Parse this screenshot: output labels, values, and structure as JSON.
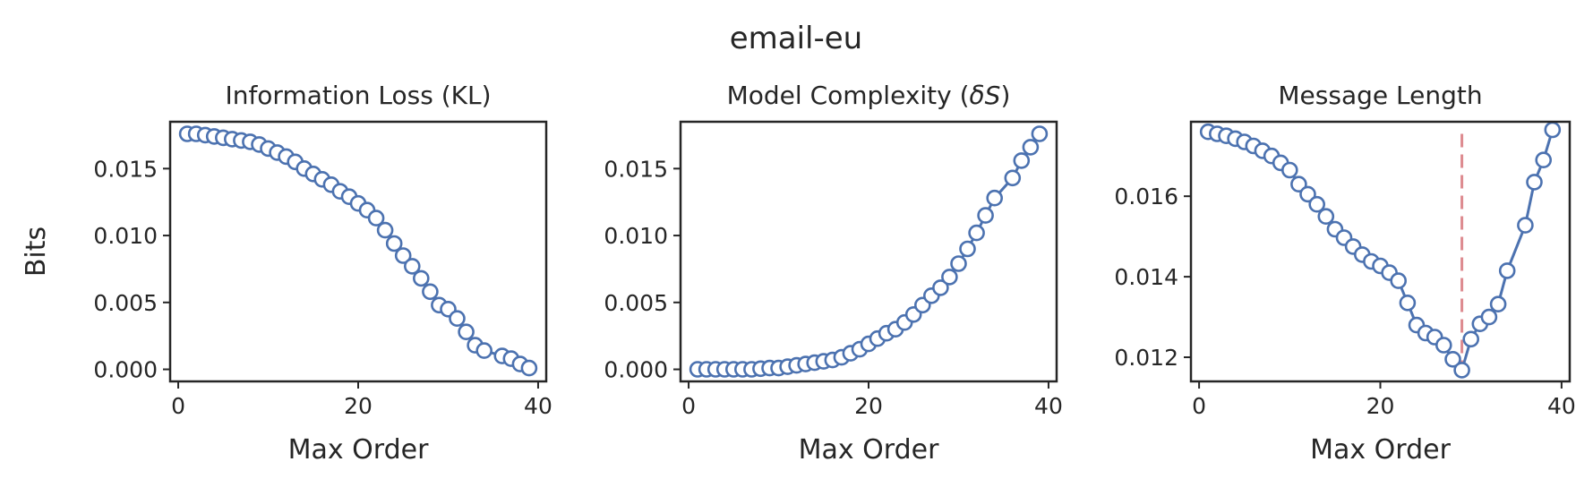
{
  "figure": {
    "title": "email-eu"
  },
  "chart_data": [
    {
      "type": "line",
      "title": "Information Loss (KL)",
      "xlabel": "Max Order",
      "ylabel": "Bits",
      "xlim": [
        -0.9,
        40.9
      ],
      "ylim": [
        -0.0009,
        0.0185
      ],
      "xticks": [
        0,
        20,
        40
      ],
      "xtick_labels": [
        "0",
        "20",
        "40"
      ],
      "yticks": [
        0.0,
        0.005,
        0.01,
        0.015
      ],
      "ytick_labels": [
        "0.000",
        "0.005",
        "0.010",
        "0.015"
      ],
      "grid": false,
      "marker": "open-circle",
      "color": "#4c72b0",
      "x": [
        1,
        2,
        3,
        4,
        5,
        6,
        7,
        8,
        9,
        10,
        11,
        12,
        13,
        14,
        15,
        16,
        17,
        18,
        19,
        20,
        21,
        22,
        23,
        24,
        25,
        26,
        27,
        28,
        29,
        30,
        31,
        32,
        33,
        34,
        35,
        36,
        37,
        38,
        39
      ],
      "values": [
        0.0176,
        0.0176,
        0.0175,
        0.0174,
        0.0173,
        0.0172,
        0.0171,
        0.017,
        0.0168,
        0.0165,
        0.0162,
        0.0159,
        0.0155,
        0.015,
        0.0146,
        0.0142,
        0.0138,
        0.0133,
        0.0129,
        0.0124,
        0.0119,
        0.0113,
        0.0104,
        0.0094,
        0.0085,
        0.0077,
        0.0068,
        0.0058,
        0.0048,
        0.0045,
        0.0038,
        0.0028,
        0.0018,
        0.0014,
        null,
        0.001,
        0.0008,
        0.0004,
        0.0001
      ]
    },
    {
      "type": "line",
      "title": "Model Complexity (δS)",
      "title_plain": "Model Complexity (",
      "title_symbol": "δS",
      "title_end": ")",
      "xlabel": "Max Order",
      "xlim": [
        -0.9,
        40.9
      ],
      "ylim": [
        -0.0009,
        0.0185
      ],
      "xticks": [
        0,
        20,
        40
      ],
      "xtick_labels": [
        "0",
        "20",
        "40"
      ],
      "yticks": [
        0.0,
        0.005,
        0.01,
        0.015
      ],
      "ytick_labels": [
        "0.000",
        "0.005",
        "0.010",
        "0.015"
      ],
      "grid": false,
      "marker": "open-circle",
      "color": "#4c72b0",
      "x": [
        1,
        2,
        3,
        4,
        5,
        6,
        7,
        8,
        9,
        10,
        11,
        12,
        13,
        14,
        15,
        16,
        17,
        18,
        19,
        20,
        21,
        22,
        23,
        24,
        25,
        26,
        27,
        28,
        29,
        30,
        31,
        32,
        33,
        34,
        35,
        36,
        37,
        38,
        39
      ],
      "values": [
        0.0,
        0.0,
        0.0,
        0.0,
        0.0,
        0.0,
        0.0,
        5e-05,
        0.0001,
        0.0001,
        0.0002,
        0.0003,
        0.0004,
        0.0005,
        0.0006,
        0.0007,
        0.0009,
        0.0012,
        0.0015,
        0.0019,
        0.0023,
        0.0027,
        0.003,
        0.0035,
        0.0041,
        0.0048,
        0.0055,
        0.0061,
        0.0069,
        0.0079,
        0.009,
        0.0102,
        0.0115,
        0.0128,
        null,
        0.0143,
        0.0156,
        0.0166,
        0.0176
      ]
    },
    {
      "type": "line",
      "title": "Message Length",
      "xlabel": "Max Order",
      "xlim": [
        -0.9,
        40.9
      ],
      "ylim": [
        0.0114,
        0.01785
      ],
      "xticks": [
        0,
        20,
        40
      ],
      "xtick_labels": [
        "0",
        "20",
        "40"
      ],
      "yticks": [
        0.012,
        0.014,
        0.016
      ],
      "ytick_labels": [
        "0.012",
        "0.014",
        "0.016"
      ],
      "grid": false,
      "marker": "open-circle",
      "color": "#4c72b0",
      "x": [
        1,
        2,
        3,
        4,
        5,
        6,
        7,
        8,
        9,
        10,
        11,
        12,
        13,
        14,
        15,
        16,
        17,
        18,
        19,
        20,
        21,
        22,
        23,
        24,
        25,
        26,
        27,
        28,
        29,
        30,
        31,
        32,
        33,
        34,
        35,
        36,
        37,
        38,
        39
      ],
      "values": [
        0.0176,
        0.01755,
        0.0175,
        0.01743,
        0.01735,
        0.01725,
        0.01713,
        0.017,
        0.01683,
        0.01665,
        0.0163,
        0.01605,
        0.0158,
        0.0155,
        0.01518,
        0.01497,
        0.01475,
        0.01455,
        0.01438,
        0.01427,
        0.0141,
        0.0139,
        0.01335,
        0.0128,
        0.0126,
        0.0125,
        0.0123,
        0.01195,
        0.01168,
        0.01245,
        0.01283,
        0.013,
        0.01332,
        0.01415,
        null,
        0.01528,
        0.01635,
        0.0169,
        0.01765
      ],
      "vline": {
        "x": 29,
        "color": "#dd8a8f",
        "style": "dashed",
        "ymin": 0.01168,
        "ymax": 0.01755
      }
    }
  ]
}
